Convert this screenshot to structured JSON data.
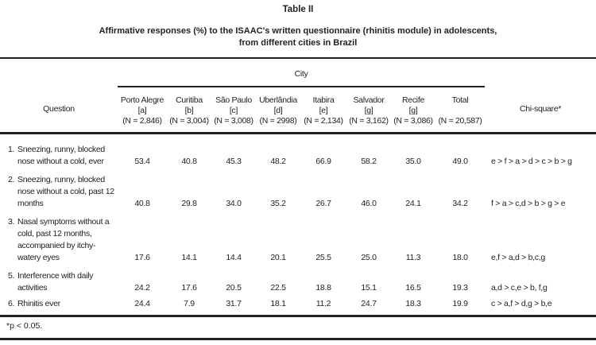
{
  "title": "Table II",
  "subtitle_lines": [
    "Affirmative responses (%) to the ISAAC's written questionnaire (rhinitis module) in adolescents,",
    "from different cities in Brazil"
  ],
  "header": {
    "question": "Question",
    "city_group": "City",
    "chi_square": "Chi-square*",
    "columns": [
      {
        "name": "Porto Alegre",
        "code": "[a]",
        "n": "(N = 2,846)"
      },
      {
        "name": "Curitiba",
        "code": "[b]",
        "n": "(N = 3,004)"
      },
      {
        "name": "São Paulo",
        "code": "[c]",
        "n": "(N = 3,008)"
      },
      {
        "name": "Uberlândia",
        "code": "[d]",
        "n": "(N = 2998)"
      },
      {
        "name": "Itabira",
        "code": "[e]",
        "n": "(N = 2,134)"
      },
      {
        "name": "Salvador",
        "code": "[g]",
        "n": "(N = 3,162)"
      },
      {
        "name": "Recife",
        "code": "[g]",
        "n": "(N = 3,086)"
      },
      {
        "name": "Total",
        "code": "",
        "n": "(N = 20,587)"
      }
    ]
  },
  "rows": [
    {
      "num": "1.",
      "question": "Sneezing, runny, blocked nose without a cold, ever",
      "values": [
        "53.4",
        "40.8",
        "45.3",
        "48.2",
        "66.9",
        "58.2",
        "35.0",
        "49.0"
      ],
      "chi": "e > f > a > d > c > b > g"
    },
    {
      "num": "2.",
      "question": "Sneezing, runny, blocked nose without a cold, past 12 months",
      "values": [
        "40.8",
        "29.8",
        "34.0",
        "35.2",
        "26.7",
        "46.0",
        "24.1",
        "34.2"
      ],
      "chi": "f > a > c,d > b > g > e"
    },
    {
      "num": "3.",
      "question": "Nasal symptoms without a cold, past 12 months, accompanied by itchy-watery eyes",
      "values": [
        "17.6",
        "14.1",
        "14.4",
        "20.1",
        "25.5",
        "25.0",
        "11.3",
        "18.0"
      ],
      "chi": "e,f > a,d > b,c,g"
    },
    {
      "num": "5.",
      "question": "Interference with daily activities",
      "values": [
        "24.2",
        "17.6",
        "20.5",
        "22.5",
        "18.8",
        "15.1",
        "16.5",
        "19.3"
      ],
      "chi": "a,d > c,e > b, f,g"
    },
    {
      "num": "6.",
      "question": "Rhinitis ever",
      "values": [
        "24.4",
        "7.9",
        "31.7",
        "18.1",
        "11.2",
        "24.7",
        "18.3",
        "19.9"
      ],
      "chi": "c > a,f > d,g > b,e"
    }
  ],
  "footnote": "*p < 0.05."
}
